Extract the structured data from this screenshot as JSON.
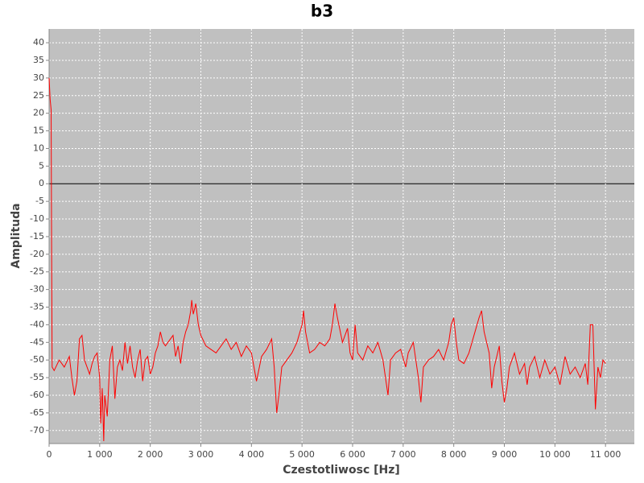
{
  "chart_data": {
    "type": "line",
    "title": "b3",
    "x_label": "Czestotliwosc [Hz]",
    "y_label": "Amplituda",
    "x": [
      0,
      20,
      40,
      50,
      60,
      100,
      200,
      300,
      400,
      450,
      500,
      550,
      600,
      650,
      700,
      750,
      800,
      850,
      900,
      950,
      1000,
      1020,
      1050,
      1080,
      1100,
      1150,
      1200,
      1250,
      1300,
      1350,
      1400,
      1450,
      1500,
      1550,
      1600,
      1650,
      1700,
      1750,
      1800,
      1850,
      1900,
      1950,
      2000,
      2050,
      2100,
      2150,
      2200,
      2250,
      2300,
      2350,
      2400,
      2450,
      2500,
      2550,
      2600,
      2650,
      2700,
      2750,
      2800,
      2820,
      2850,
      2900,
      2950,
      3000,
      3100,
      3200,
      3300,
      3400,
      3500,
      3600,
      3700,
      3800,
      3900,
      4000,
      4100,
      4200,
      4300,
      4400,
      4450,
      4500,
      4550,
      4600,
      4700,
      4800,
      4900,
      5000,
      5030,
      5070,
      5150,
      5250,
      5350,
      5450,
      5550,
      5600,
      5650,
      5700,
      5800,
      5900,
      5950,
      6000,
      6050,
      6100,
      6200,
      6300,
      6400,
      6500,
      6600,
      6700,
      6750,
      6850,
      6950,
      7050,
      7100,
      7200,
      7300,
      7350,
      7400,
      7500,
      7600,
      7700,
      7800,
      7900,
      7950,
      8000,
      8050,
      8100,
      8200,
      8300,
      8400,
      8500,
      8550,
      8600,
      8700,
      8750,
      8800,
      8900,
      8950,
      9000,
      9050,
      9100,
      9200,
      9300,
      9400,
      9450,
      9500,
      9600,
      9700,
      9800,
      9900,
      10000,
      10100,
      10200,
      10300,
      10400,
      10500,
      10600,
      10650,
      10700,
      10750,
      10800,
      10850,
      10900,
      10950,
      11000
    ],
    "series": [
      {
        "name": "b3",
        "color": "#ff0000",
        "values": [
          30,
          24,
          21,
          -20,
          -52,
          -53,
          -50,
          -52,
          -49,
          -55,
          -60,
          -56,
          -44,
          -43,
          -50,
          -52,
          -54,
          -51,
          -49,
          -48,
          -55,
          -68,
          -58,
          -73,
          -60,
          -66,
          -50,
          -46,
          -61,
          -52,
          -50,
          -53,
          -45,
          -51,
          -46,
          -52,
          -55,
          -50,
          -47,
          -56,
          -50,
          -49,
          -54,
          -52,
          -48,
          -46,
          -42,
          -45,
          -46,
          -45,
          -44,
          -43,
          -49,
          -46,
          -51,
          -45,
          -42,
          -40,
          -36,
          -33,
          -37,
          -34,
          -40,
          -43,
          -46,
          -47,
          -48,
          -46,
          -44,
          -47,
          -45,
          -49,
          -46,
          -48,
          -56,
          -49,
          -47,
          -44,
          -52,
          -65,
          -59,
          -52,
          -50,
          -48,
          -45,
          -40,
          -36,
          -42,
          -48,
          -47,
          -45,
          -46,
          -44,
          -40,
          -34,
          -38,
          -45,
          -41,
          -48,
          -50,
          -40,
          -48,
          -50,
          -46,
          -48,
          -45,
          -50,
          -60,
          -50,
          -48,
          -47,
          -52,
          -48,
          -45,
          -55,
          -62,
          -52,
          -50,
          -49,
          -47,
          -50,
          -45,
          -40,
          -38,
          -45,
          -50,
          -51,
          -48,
          -43,
          -38,
          -36,
          -42,
          -48,
          -58,
          -52,
          -46,
          -56,
          -62,
          -58,
          -52,
          -48,
          -54,
          -51,
          -57,
          -52,
          -49,
          -55,
          -50,
          -54,
          -52,
          -57,
          -49,
          -54,
          -52,
          -55,
          -51,
          -57,
          -40,
          -40,
          -64,
          -52,
          -55,
          -50,
          -51
        ]
      }
    ],
    "xlim": [
      0,
      11570
    ],
    "ylim": [
      -73.7,
      43.9
    ],
    "xticks": [
      0,
      {
        "value": 1000,
        "label": "1 000"
      },
      {
        "value": 2000,
        "label": "2 000"
      },
      {
        "value": 3000,
        "label": "3 000"
      },
      {
        "value": 4000,
        "label": "4 000"
      },
      {
        "value": 5000,
        "label": "5 000"
      },
      {
        "value": 6000,
        "label": "6 000"
      },
      {
        "value": 7000,
        "label": "7 000"
      },
      {
        "value": 8000,
        "label": "8 000"
      },
      {
        "value": 9000,
        "label": "9 000"
      },
      {
        "value": 10000,
        "label": "10 000"
      },
      {
        "value": 11000,
        "label": "11 000"
      }
    ],
    "yticks": [
      -70,
      -65,
      -60,
      -55,
      -50,
      -45,
      -40,
      -35,
      -30,
      -25,
      -20,
      -15,
      -10,
      -5,
      0,
      5,
      10,
      15,
      20,
      25,
      30,
      35,
      40
    ],
    "grid": true
  }
}
